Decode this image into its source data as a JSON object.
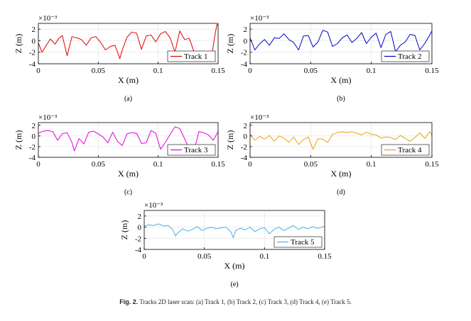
{
  "figure": {
    "caption_label": "Fig. 2.",
    "caption_text": "Tracks 2D laser scan: (a) Track 1, (b) Track 2, (c) Track 3, (d) Track 4, (e) Track 5."
  },
  "chart_data": [
    {
      "type": "line",
      "panel_label": "(a)",
      "xlabel": "X (m)",
      "ylabel": "Z (m)",
      "y_multiplier": "×10⁻³",
      "xlim": [
        0,
        0.15
      ],
      "ylim": [
        -4,
        3
      ],
      "xticks": [
        "0",
        "0.05",
        "0.1",
        "0.15"
      ],
      "yticks": [
        "-4",
        "-2",
        "0",
        "2"
      ],
      "grid": true,
      "legend_position": "lower-right",
      "series": [
        {
          "name": "Track 1",
          "color": "#e00000",
          "x": [
            0,
            0.003,
            0.006,
            0.01,
            0.014,
            0.017,
            0.02,
            0.024,
            0.028,
            0.032,
            0.036,
            0.04,
            0.044,
            0.048,
            0.052,
            0.056,
            0.06,
            0.064,
            0.068,
            0.07,
            0.074,
            0.078,
            0.082,
            0.086,
            0.09,
            0.094,
            0.098,
            0.102,
            0.106,
            0.11,
            0.114,
            0.118,
            0.122,
            0.126,
            0.13,
            0.134,
            0.138,
            0.142,
            0.145,
            0.147,
            0.149,
            0.15
          ],
          "y": [
            -0.4,
            -2.0,
            -1.0,
            0.3,
            -0.6,
            0.4,
            0.9,
            -2.6,
            0.7,
            0.5,
            0.2,
            -0.8,
            0.5,
            0.7,
            -0.3,
            -1.6,
            -1.0,
            -0.8,
            -3.1,
            -1.6,
            0.6,
            1.5,
            1.3,
            -1.5,
            0.8,
            1.0,
            -0.2,
            1.2,
            1.6,
            0.5,
            -2.0,
            1.7,
            0.2,
            0.4,
            -2.0,
            -2.3,
            -1.8,
            -2.6,
            -2.2,
            0.5,
            2.8,
            2.6
          ]
        }
      ]
    },
    {
      "type": "line",
      "panel_label": "(b)",
      "xlabel": "X (m)",
      "ylabel": "Z (m)",
      "y_multiplier": "×10⁻³",
      "xlim": [
        0,
        0.15
      ],
      "ylim": [
        -4,
        3
      ],
      "xticks": [
        "0",
        "0.05",
        "0.1",
        "0.15"
      ],
      "yticks": [
        "-4",
        "-2",
        "0",
        "2"
      ],
      "grid": true,
      "legend_position": "lower-right",
      "series": [
        {
          "name": "Track 2",
          "color": "#0000c8",
          "x": [
            0,
            0.004,
            0.008,
            0.012,
            0.016,
            0.02,
            0.024,
            0.028,
            0.032,
            0.036,
            0.04,
            0.044,
            0.048,
            0.052,
            0.056,
            0.06,
            0.064,
            0.068,
            0.072,
            0.076,
            0.08,
            0.084,
            0.088,
            0.092,
            0.096,
            0.1,
            0.104,
            0.108,
            0.112,
            0.116,
            0.12,
            0.124,
            0.128,
            0.132,
            0.136,
            0.14,
            0.144,
            0.148,
            0.15
          ],
          "y": [
            0.5,
            -1.6,
            -0.5,
            0.2,
            -0.8,
            0.5,
            0.4,
            1.2,
            0.2,
            -0.3,
            -1.6,
            0.8,
            0.9,
            -1.1,
            -0.2,
            1.8,
            1.5,
            -1.0,
            -0.5,
            0.5,
            1.0,
            -0.3,
            0.4,
            1.4,
            -0.5,
            0.6,
            1.3,
            -1.2,
            1.1,
            1.6,
            -1.9,
            -0.8,
            -0.2,
            1.1,
            0.9,
            -1.6,
            -0.5,
            0.9,
            1.7
          ]
        }
      ]
    },
    {
      "type": "line",
      "panel_label": "(c)",
      "xlabel": "X (m)",
      "ylabel": "Z (m)",
      "y_multiplier": "×10⁻³",
      "xlim": [
        0,
        0.15
      ],
      "ylim": [
        -4,
        2.5
      ],
      "xticks": [
        "0",
        "0.05",
        "0.1",
        "0.15"
      ],
      "yticks": [
        "-4",
        "-2",
        "0",
        "2"
      ],
      "grid": true,
      "legend_position": "lower-right",
      "series": [
        {
          "name": "Track 3",
          "color": "#e000e0",
          "x": [
            0,
            0.004,
            0.008,
            0.012,
            0.016,
            0.02,
            0.024,
            0.028,
            0.03,
            0.034,
            0.038,
            0.042,
            0.046,
            0.05,
            0.054,
            0.058,
            0.062,
            0.066,
            0.07,
            0.074,
            0.078,
            0.082,
            0.086,
            0.09,
            0.094,
            0.098,
            0.102,
            0.106,
            0.11,
            0.114,
            0.118,
            0.122,
            0.126,
            0.13,
            0.134,
            0.138,
            0.142,
            0.146,
            0.15
          ],
          "y": [
            0.5,
            0.9,
            1.0,
            0.8,
            -0.8,
            0.4,
            0.6,
            -1.2,
            -2.8,
            -0.5,
            -1.5,
            0.7,
            0.9,
            0.4,
            -0.2,
            -1.3,
            0.7,
            -1.0,
            -1.8,
            0.4,
            0.6,
            0.5,
            -1.4,
            -1.3,
            1.0,
            0.5,
            -2.5,
            -1.2,
            0.3,
            1.7,
            1.4,
            -0.5,
            -2.5,
            -2.7,
            0.8,
            0.6,
            0.2,
            -0.8,
            0.8
          ]
        }
      ]
    },
    {
      "type": "line",
      "panel_label": "(d)",
      "xlabel": "X (m)",
      "ylabel": "Z (m)",
      "y_multiplier": "×10⁻³",
      "xlim": [
        0,
        0.15
      ],
      "ylim": [
        -4,
        2.5
      ],
      "xticks": [
        "0",
        "0.05",
        "0.1",
        "0.15"
      ],
      "yticks": [
        "-4",
        "-2",
        "0",
        "2"
      ],
      "grid": true,
      "legend_position": "lower-right",
      "series": [
        {
          "name": "Track 4",
          "color": "#e8a20c",
          "x": [
            0,
            0.004,
            0.008,
            0.012,
            0.016,
            0.02,
            0.024,
            0.028,
            0.032,
            0.036,
            0.04,
            0.044,
            0.048,
            0.052,
            0.056,
            0.06,
            0.064,
            0.068,
            0.072,
            0.076,
            0.08,
            0.084,
            0.088,
            0.092,
            0.096,
            0.1,
            0.104,
            0.108,
            0.112,
            0.116,
            0.12,
            0.124,
            0.128,
            0.132,
            0.136,
            0.14,
            0.144,
            0.148,
            0.15
          ],
          "y": [
            0.3,
            -0.8,
            -0.1,
            -0.6,
            0.1,
            -1.0,
            0.0,
            -0.4,
            -1.2,
            -0.2,
            -1.6,
            -0.7,
            -0.2,
            -2.5,
            -0.5,
            -0.6,
            -1.2,
            0.3,
            0.6,
            0.8,
            0.6,
            0.8,
            0.5,
            0.2,
            0.7,
            0.3,
            0.2,
            -0.4,
            -0.2,
            -0.3,
            -0.7,
            0.1,
            -0.5,
            -1.0,
            -0.3,
            0.6,
            -0.5,
            0.8,
            0.2
          ]
        }
      ]
    },
    {
      "type": "line",
      "panel_label": "(e)",
      "xlabel": "X (m)",
      "ylabel": "Z (m)",
      "y_multiplier": "×10⁻³",
      "xlim": [
        0,
        0.15
      ],
      "ylim": [
        -4,
        3
      ],
      "xticks": [
        "0",
        "0.05",
        "0.1",
        "0.15"
      ],
      "yticks": [
        "-4",
        "-2",
        "0",
        "2"
      ],
      "grid": true,
      "legend_position": "lower-right",
      "series": [
        {
          "name": "Track 5",
          "color": "#4aaee8",
          "x": [
            0,
            0.004,
            0.008,
            0.012,
            0.016,
            0.02,
            0.024,
            0.026,
            0.028,
            0.032,
            0.036,
            0.04,
            0.044,
            0.048,
            0.052,
            0.056,
            0.06,
            0.064,
            0.068,
            0.072,
            0.074,
            0.076,
            0.08,
            0.084,
            0.088,
            0.092,
            0.096,
            0.1,
            0.104,
            0.108,
            0.112,
            0.116,
            0.12,
            0.124,
            0.128,
            0.132,
            0.136,
            0.14,
            0.144,
            0.148,
            0.15
          ],
          "y": [
            0.2,
            0.4,
            0.3,
            0.6,
            0.2,
            0.3,
            -0.5,
            -1.6,
            -1.0,
            -0.3,
            -0.7,
            -0.4,
            0.1,
            -0.6,
            -0.2,
            0.0,
            -0.3,
            -0.1,
            0.0,
            -0.8,
            -1.9,
            -0.6,
            -0.2,
            -0.5,
            0.0,
            -0.8,
            -0.3,
            -0.1,
            -1.2,
            -0.4,
            0.0,
            -0.6,
            -0.2,
            0.3,
            -0.4,
            0.0,
            -0.3,
            0.1,
            -0.2,
            0.0,
            0.2
          ]
        }
      ]
    }
  ]
}
